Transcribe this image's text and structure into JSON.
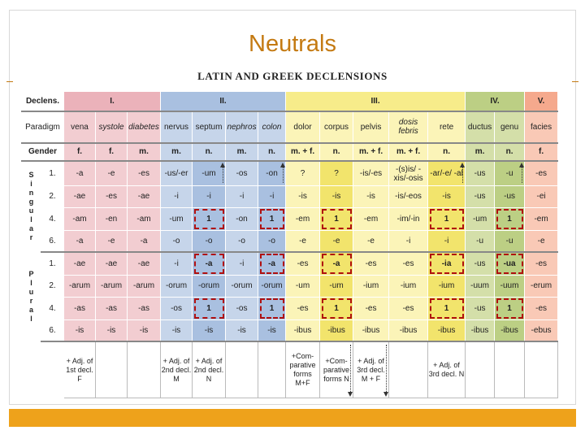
{
  "slide": {
    "title": "Neutrals"
  },
  "table_heading": "LATIN AND GREEK DECLENSIONS",
  "header": {
    "declens_label": "Declens.",
    "paradigm_label": "Paradigm",
    "gender_label": "Gender",
    "declensions": [
      "I.",
      "II.",
      "III.",
      "IV.",
      "V."
    ],
    "paradigms": [
      "vena",
      "systole",
      "diabetes",
      "nervus",
      "septum",
      "nephros",
      "colon",
      "dolor",
      "corpus",
      "pelvis",
      "dosis febris",
      "rete",
      "ductus",
      "genu",
      "facies"
    ],
    "genders": [
      "f.",
      "f.",
      "m.",
      "m.",
      "n.",
      "m.",
      "n.",
      "m. + f.",
      "n.",
      "m. + f.",
      "m. + f.",
      "n.",
      "m.",
      "n.",
      "f."
    ]
  },
  "groups": {
    "singular": {
      "letters": "S i n g u l a r"
    },
    "plural": {
      "letters": "P l u r a l"
    }
  },
  "rows": [
    {
      "case": "1.",
      "cells": [
        "-a",
        "-e",
        "-es",
        "-us/-er",
        "-um",
        "-os",
        "-on",
        "?",
        "?",
        "-is/-es",
        "-(s)is/ -xis/-osis",
        "-ar/-e/ -al",
        "-us",
        "-u",
        "-es"
      ]
    },
    {
      "case": "2.",
      "cells": [
        "-ae",
        "-es",
        "-ae",
        "-i",
        "-i",
        "-i",
        "-i",
        "-is",
        "-is",
        "-is",
        "-is/-eos",
        "-is",
        "-us",
        "-us",
        "-ei"
      ]
    },
    {
      "case": "4.",
      "cells": [
        "-am",
        "-en",
        "-am",
        "-um",
        "1",
        "-on",
        "1",
        "-em",
        "1",
        "-em",
        "-im/-in",
        "1",
        "-um",
        "1",
        "-em"
      ]
    },
    {
      "case": "6.",
      "cells": [
        "-a",
        "-e",
        "-a",
        "-o",
        "-o",
        "-o",
        "-o",
        "-e",
        "-e",
        "-e",
        "-i",
        "-i",
        "-u",
        "-u",
        "-e"
      ]
    },
    {
      "case": "1.",
      "cells": [
        "-ae",
        "-ae",
        "-ae",
        "-i",
        "-a",
        "-i",
        "-a",
        "-es",
        "-a",
        "-es",
        "-es",
        "-ia",
        "-us",
        "-ua",
        "-es"
      ]
    },
    {
      "case": "2.",
      "cells": [
        "-arum",
        "-arum",
        "-arum",
        "-orum",
        "-orum",
        "-orum",
        "-orum",
        "-um",
        "-um",
        "-ium",
        "-ium",
        "-ium",
        "-uum",
        "-uum",
        "-erum"
      ]
    },
    {
      "case": "4.",
      "cells": [
        "-as",
        "-as",
        "-as",
        "-os",
        "1",
        "-os",
        "1",
        "-es",
        "1",
        "-es",
        "-es",
        "1",
        "-us",
        "1",
        "-es"
      ]
    },
    {
      "case": "6.",
      "cells": [
        "-is",
        "-is",
        "-is",
        "-is",
        "-is",
        "-is",
        "-is",
        "-ibus",
        "-ibus",
        "-ibus",
        "-ibus",
        "-ibus",
        "-ibus",
        "-ibus",
        "-ebus"
      ]
    }
  ],
  "notes": [
    "",
    "+ Adj. of 1st decl. F",
    "",
    "",
    "+ Adj. of 2nd decl. M",
    "+ Adj. of 2nd decl. N",
    "",
    "",
    "+Com- parative forms M+F",
    "+Com- parative forms N",
    "+ Adj. of 3rd decl. M + F",
    "",
    "+ Adj. of 3rd decl. N",
    "",
    "",
    ""
  ],
  "colors": {
    "accent": "#c47a12",
    "bar": "#eea21b",
    "highlight": "#b01010"
  }
}
